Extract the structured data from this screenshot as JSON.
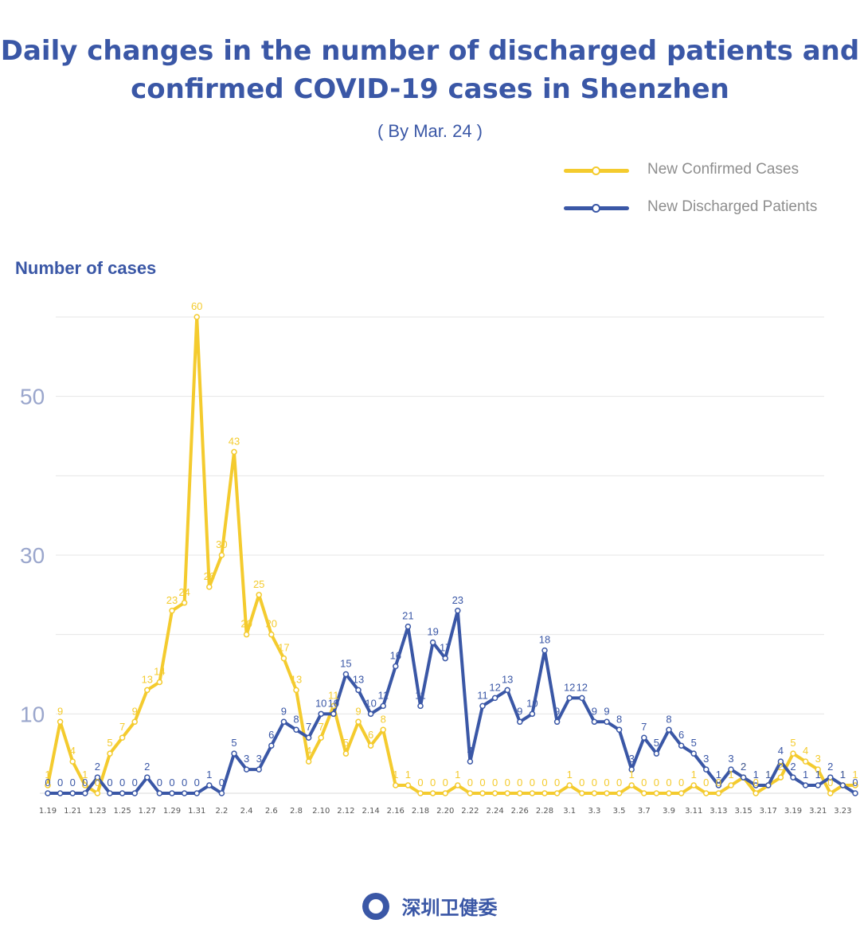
{
  "title_line1": "Daily changes in the number of discharged patients and",
  "title_line2": "confirmed COVID-19 cases in Shenzhen",
  "subtitle": "( By Mar. 24 )",
  "footer_org": "深圳卫健委",
  "colors": {
    "confirmed": "#f4cb2e",
    "discharged": "#3a57a6",
    "axis_label": "#9aa6cc",
    "title": "#3a57a6"
  },
  "chart_data": {
    "type": "line",
    "ylabel": "Number of cases",
    "ylim": [
      0,
      60
    ],
    "yticks": [
      10,
      30,
      50
    ],
    "grid": true,
    "legend_position": "top-right",
    "x": [
      "1.19",
      "1.20",
      "1.21",
      "1.22",
      "1.23",
      "1.24",
      "1.25",
      "1.26",
      "1.27",
      "1.28",
      "1.29",
      "1.30",
      "1.31",
      "2.1",
      "2.2",
      "2.3",
      "2.4",
      "2.5",
      "2.6",
      "2.7",
      "2.8",
      "2.9",
      "2.10",
      "2.11",
      "2.12",
      "2.13",
      "2.14",
      "2.15",
      "2.16",
      "2.17",
      "2.18",
      "2.19",
      "2.20",
      "2.21",
      "2.22",
      "2.23",
      "2.24",
      "2.25",
      "2.26",
      "2.27",
      "2.28",
      "2.29",
      "3.1",
      "3.2",
      "3.3",
      "3.4",
      "3.5",
      "3.6",
      "3.7",
      "3.8",
      "3.9",
      "3.10",
      "3.11",
      "3.12",
      "3.13",
      "3.14",
      "3.15",
      "3.16",
      "3.17",
      "3.18",
      "3.19",
      "3.20",
      "3.21",
      "3.22",
      "3.23",
      "3.24"
    ],
    "xtick_labels": [
      "1.19",
      "1.21",
      "1.23",
      "1.25",
      "1.27",
      "1.29",
      "1.31",
      "2.2",
      "2.4",
      "2.6",
      "2.8",
      "2.10",
      "2.12",
      "2.14",
      "2.16",
      "2.18",
      "2.20",
      "2.22",
      "2.24",
      "2.26",
      "2.28",
      "3.1",
      "3.3",
      "3.5",
      "3.7",
      "3.9",
      "3.11",
      "3.13",
      "3.15",
      "3.17",
      "3.19",
      "3.21",
      "3.23"
    ],
    "series": [
      {
        "name": "New Confirmed Cases",
        "values": [
          1,
          9,
          4,
          1,
          0,
          5,
          7,
          9,
          13,
          14,
          23,
          24,
          60,
          26,
          30,
          43,
          20,
          25,
          20,
          17,
          13,
          4,
          7,
          11,
          5,
          9,
          6,
          8,
          1,
          1,
          0,
          0,
          0,
          1,
          0,
          0,
          0,
          0,
          0,
          0,
          0,
          0,
          1,
          0,
          0,
          0,
          0,
          1,
          0,
          0,
          0,
          0,
          1,
          0,
          0,
          1,
          2,
          0,
          1,
          2,
          5,
          4,
          3,
          0,
          1,
          1
        ]
      },
      {
        "name": "New Discharged Patients",
        "values": [
          0,
          0,
          0,
          0,
          2,
          0,
          0,
          0,
          2,
          0,
          0,
          0,
          0,
          1,
          0,
          5,
          3,
          3,
          6,
          9,
          8,
          7,
          10,
          10,
          15,
          13,
          10,
          11,
          16,
          21,
          11,
          19,
          17,
          23,
          4,
          11,
          12,
          13,
          9,
          10,
          18,
          9,
          12,
          12,
          9,
          9,
          8,
          3,
          7,
          5,
          8,
          6,
          5,
          3,
          1,
          3,
          2,
          1,
          1,
          4,
          2,
          1,
          1,
          2,
          1,
          0
        ]
      }
    ]
  }
}
